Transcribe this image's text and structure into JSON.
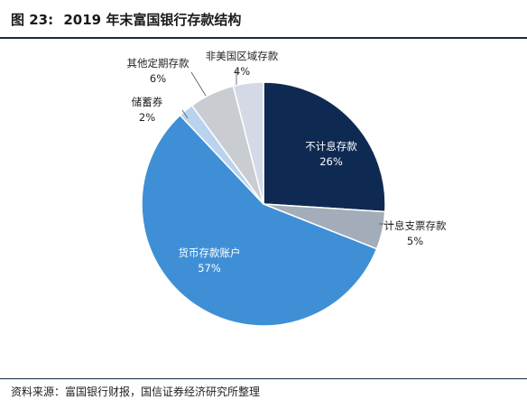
{
  "figure": {
    "label": "图 23:",
    "title": "2019 年末富国银行存款结构"
  },
  "source": "资料来源：富国银行财报，国信证券经济研究所整理",
  "chart_data": {
    "type": "pie",
    "title": "2019 年末富国银行存款结构",
    "slices": [
      {
        "name": "不计息存款",
        "value": 26,
        "label": "26%",
        "color": "#0f2a52"
      },
      {
        "name": "计息支票存款",
        "value": 5,
        "label": "5%",
        "color": "#a3adb9"
      },
      {
        "name": "货币存款账户",
        "value": 57,
        "label": "57%",
        "color": "#3f8fd6"
      },
      {
        "name": "储蓄券",
        "value": 2,
        "label": "2%",
        "color": "#b9d3ee"
      },
      {
        "name": "其他定期存款",
        "value": 6,
        "label": "6%",
        "color": "#c9cdd2"
      },
      {
        "name": "非美国区域存款",
        "value": 4,
        "label": "4%",
        "color": "#d5d9e6"
      }
    ]
  }
}
